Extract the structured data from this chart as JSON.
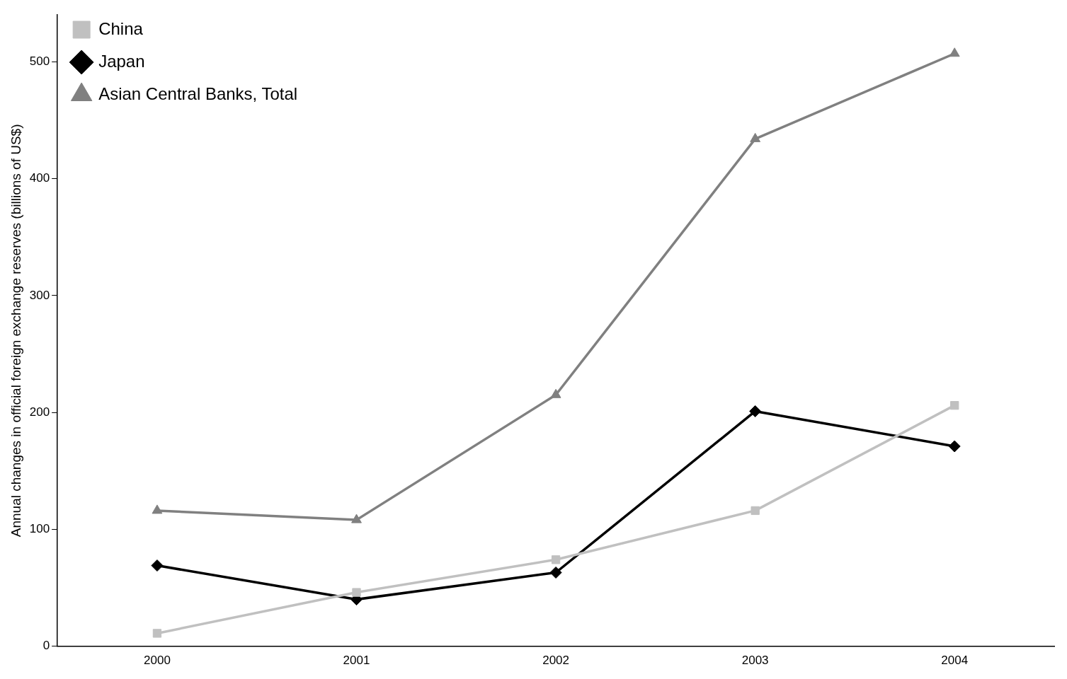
{
  "chart_data": {
    "type": "line",
    "ylabel": "Annual changes in official foreign exchange reserves (billions of US$)",
    "categories": [
      "2000",
      "2001",
      "2002",
      "2003",
      "2004"
    ],
    "series": [
      {
        "name": "China",
        "color": "#c0c0c0",
        "marker": "square",
        "values": [
          11,
          46,
          74,
          116,
          206
        ]
      },
      {
        "name": "Japan",
        "color": "#000000",
        "marker": "diamond",
        "values": [
          69,
          40,
          63,
          201,
          171
        ]
      },
      {
        "name": "Asian Central Banks, Total",
        "color": "#808080",
        "marker": "triangle",
        "values": [
          116,
          108,
          215,
          434,
          507
        ]
      }
    ],
    "ylim": [
      0,
      540
    ],
    "yticks": [
      0,
      100,
      200,
      300,
      400,
      500
    ],
    "grid": false,
    "legend": "top left",
    "line_style": "solid"
  }
}
